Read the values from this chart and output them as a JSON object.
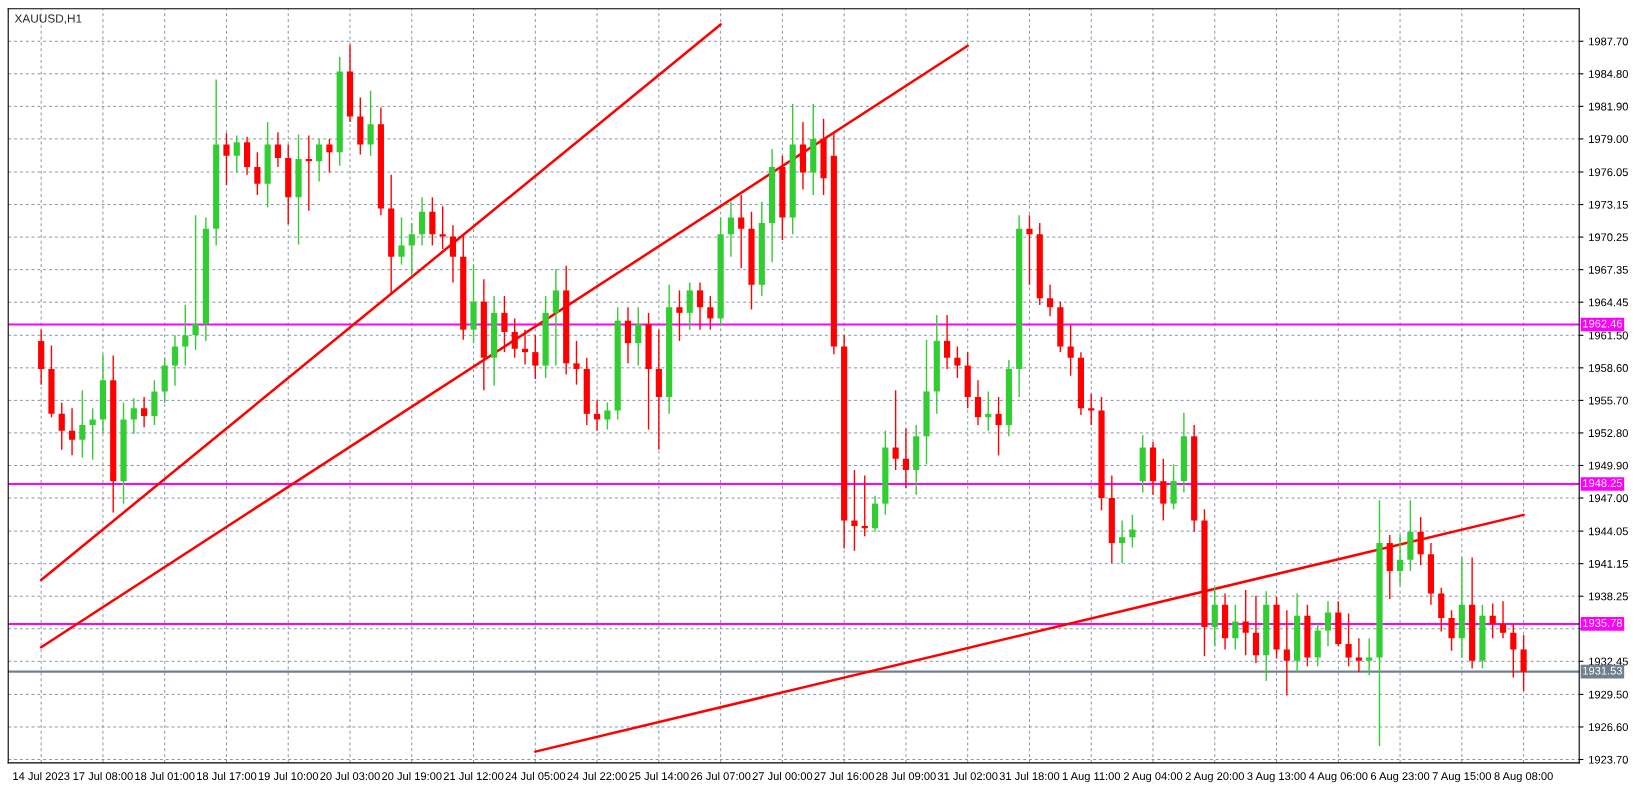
{
  "chart_data": {
    "type": "candlestick",
    "title": "XAUUSD,H1",
    "categories": [
      "14 Jul 2023",
      null,
      null,
      null,
      null,
      null,
      "17 Jul 08:00",
      null,
      null,
      null,
      null,
      null,
      "18 Jul 01:00",
      null,
      null,
      null,
      null,
      null,
      "18 Jul 17:00",
      null,
      null,
      null,
      null,
      null,
      "19 Jul 10:00",
      null,
      null,
      null,
      null,
      null,
      "20 Jul 03:00",
      null,
      null,
      null,
      null,
      null,
      "20 Jul 19:00",
      null,
      null,
      null,
      null,
      null,
      "21 Jul 12:00",
      null,
      null,
      null,
      null,
      null,
      "24 Jul 05:00",
      null,
      null,
      null,
      null,
      null,
      "24 Jul 22:00",
      null,
      null,
      null,
      null,
      null,
      "25 Jul 14:00",
      null,
      null,
      null,
      null,
      null,
      "26 Jul 07:00",
      null,
      null,
      null,
      null,
      null,
      "27 Jul 00:00",
      null,
      null,
      null,
      null,
      null,
      "27 Jul 16:00",
      null,
      null,
      null,
      null,
      null,
      "28 Jul 09:00",
      null,
      null,
      null,
      null,
      null,
      "31 Jul 02:00",
      null,
      null,
      null,
      null,
      null,
      "31 Jul 18:00",
      null,
      null,
      null,
      null,
      null,
      "1 Aug 11:00",
      null,
      null,
      null,
      null,
      null,
      "2 Aug 04:00",
      null,
      null,
      null,
      null,
      null,
      "2 Aug 20:00",
      null,
      null,
      null,
      null,
      null,
      "3 Aug 13:00",
      null,
      null,
      null,
      null,
      null,
      "4 Aug 06:00",
      null,
      null,
      null,
      null,
      null,
      "6 Aug 23:00",
      null,
      null,
      null,
      null,
      null,
      "7 Aug 15:00",
      null,
      null,
      null,
      null,
      null,
      "8 Aug 08:00"
    ],
    "ohlc": [
      [
        1961.0,
        1962.0,
        1957.1,
        1958.5
      ],
      [
        1958.5,
        1960.6,
        1954.2,
        1954.5
      ],
      [
        1954.5,
        1955.5,
        1951.3,
        1953.0
      ],
      [
        1953.0,
        1955.0,
        1950.8,
        1952.2
      ],
      [
        1952.2,
        1956.6,
        1950.6,
        1953.5
      ],
      [
        1953.5,
        1955.0,
        1950.4,
        1954.0
      ],
      [
        1954.0,
        1959.8,
        1952.8,
        1957.5
      ],
      [
        1957.5,
        1959.7,
        1945.7,
        1948.5
      ],
      [
        1948.5,
        1955.5,
        1946.5,
        1954.0
      ],
      [
        1954.0,
        1955.9,
        1952.7,
        1955.0
      ],
      [
        1955.0,
        1956.0,
        1953.3,
        1954.3
      ],
      [
        1954.3,
        1957.5,
        1953.5,
        1956.5
      ],
      [
        1956.5,
        1959.5,
        1955.5,
        1958.8
      ],
      [
        1958.8,
        1961.5,
        1957.0,
        1960.5
      ],
      [
        1960.5,
        1964.2,
        1958.8,
        1961.5
      ],
      [
        1961.5,
        1972.2,
        1960.2,
        1962.5
      ],
      [
        1962.5,
        1972.0,
        1961.0,
        1971.0
      ],
      [
        1971.0,
        1984.3,
        1969.5,
        1978.5
      ],
      [
        1978.5,
        1979.5,
        1974.9,
        1977.5
      ],
      [
        1977.5,
        1979.3,
        1976.0,
        1978.7
      ],
      [
        1978.7,
        1979.2,
        1975.8,
        1976.5
      ],
      [
        1976.5,
        1977.8,
        1974.0,
        1975.0
      ],
      [
        1975.0,
        1980.5,
        1972.9,
        1978.5
      ],
      [
        1978.5,
        1979.6,
        1976.5,
        1977.3
      ],
      [
        1977.3,
        1978.5,
        1971.4,
        1973.8
      ],
      [
        1973.8,
        1979.4,
        1969.6,
        1977.2
      ],
      [
        1977.2,
        1979.3,
        1972.6,
        1977.0
      ],
      [
        1977.0,
        1979.0,
        1975.2,
        1978.5
      ],
      [
        1978.5,
        1979.0,
        1976.0,
        1977.8
      ],
      [
        1977.8,
        1986.3,
        1976.6,
        1985.0
      ],
      [
        1985.0,
        1987.4,
        1980.5,
        1981.0
      ],
      [
        1981.0,
        1982.7,
        1977.6,
        1978.5
      ],
      [
        1978.5,
        1983.3,
        1977.5,
        1980.3
      ],
      [
        1980.3,
        1981.8,
        1972.2,
        1972.8
      ],
      [
        1972.8,
        1975.8,
        1965.1,
        1968.5
      ],
      [
        1968.5,
        1972.0,
        1967.8,
        1969.5
      ],
      [
        1969.5,
        1971.5,
        1966.8,
        1970.5
      ],
      [
        1970.5,
        1973.8,
        1969.5,
        1972.5
      ],
      [
        1972.5,
        1973.8,
        1969.5,
        1970.5
      ],
      [
        1970.5,
        1973.0,
        1969.2,
        1970.3
      ],
      [
        1970.3,
        1971.3,
        1966.2,
        1968.5
      ],
      [
        1968.5,
        1970.5,
        1961.1,
        1962.0
      ],
      [
        1962.0,
        1967.8,
        1960.8,
        1964.5
      ],
      [
        1964.5,
        1966.5,
        1956.6,
        1959.5
      ],
      [
        1959.5,
        1965.0,
        1957.0,
        1963.5
      ],
      [
        1963.5,
        1965.0,
        1960.0,
        1961.8
      ],
      [
        1961.8,
        1963.0,
        1959.5,
        1960.3
      ],
      [
        1960.3,
        1962.0,
        1958.9,
        1960.0
      ],
      [
        1960.0,
        1961.5,
        1957.6,
        1958.8
      ],
      [
        1958.8,
        1965.0,
        1957.7,
        1963.5
      ],
      [
        1963.5,
        1967.4,
        1958.8,
        1965.5
      ],
      [
        1965.5,
        1967.7,
        1958.0,
        1959.0
      ],
      [
        1959.0,
        1961.0,
        1957.1,
        1958.5
      ],
      [
        1958.5,
        1959.5,
        1953.5,
        1954.5
      ],
      [
        1954.5,
        1955.7,
        1953.0,
        1954.0
      ],
      [
        1954.0,
        1955.5,
        1953.1,
        1954.8
      ],
      [
        1954.8,
        1964.0,
        1954.0,
        1962.8
      ],
      [
        1962.8,
        1964.0,
        1959.0,
        1960.8
      ],
      [
        1960.8,
        1964.0,
        1958.8,
        1962.5
      ],
      [
        1962.5,
        1963.5,
        1953.1,
        1958.5
      ],
      [
        1958.5,
        1962.0,
        1951.3,
        1956.0
      ],
      [
        1956.0,
        1966.0,
        1954.5,
        1964.0
      ],
      [
        1964.0,
        1965.5,
        1961.0,
        1963.5
      ],
      [
        1963.5,
        1966.2,
        1962.0,
        1965.5
      ],
      [
        1965.5,
        1966.2,
        1962.0,
        1964.0
      ],
      [
        1964.0,
        1965.0,
        1962.0,
        1963.0
      ],
      [
        1963.0,
        1972.0,
        1962.3,
        1970.5
      ],
      [
        1970.5,
        1973.4,
        1968.5,
        1972.0
      ],
      [
        1972.0,
        1974.0,
        1967.5,
        1971.0
      ],
      [
        1971.0,
        1972.5,
        1963.8,
        1966.0
      ],
      [
        1966.0,
        1973.4,
        1965.0,
        1971.5
      ],
      [
        1971.5,
        1978.1,
        1968.0,
        1976.5
      ],
      [
        1976.5,
        1977.5,
        1970.0,
        1972.0
      ],
      [
        1972.0,
        1982.1,
        1970.5,
        1978.5
      ],
      [
        1978.5,
        1980.5,
        1974.5,
        1976.0
      ],
      [
        1976.0,
        1982.1,
        1974.0,
        1979.0
      ],
      [
        1979.0,
        1980.8,
        1974.0,
        1975.5
      ],
      [
        1977.5,
        1979.5,
        1959.8,
        1960.5
      ],
      [
        1960.5,
        1961.5,
        1942.5,
        1945.0
      ],
      [
        1945.0,
        1949.5,
        1942.3,
        1944.5
      ],
      [
        1944.5,
        1949.0,
        1943.6,
        1944.3
      ],
      [
        1944.3,
        1947.2,
        1944.0,
        1946.5
      ],
      [
        1946.5,
        1953.0,
        1945.5,
        1951.5
      ],
      [
        1951.5,
        1956.6,
        1949.5,
        1950.5
      ],
      [
        1950.5,
        1953.2,
        1947.9,
        1949.5
      ],
      [
        1949.5,
        1953.5,
        1947.3,
        1952.5
      ],
      [
        1952.5,
        1961.1,
        1950.0,
        1956.5
      ],
      [
        1956.5,
        1963.3,
        1954.5,
        1961.0
      ],
      [
        1961.0,
        1963.3,
        1958.5,
        1959.5
      ],
      [
        1959.5,
        1960.5,
        1957.7,
        1958.8
      ],
      [
        1958.8,
        1960.0,
        1955.0,
        1956.0
      ],
      [
        1956.0,
        1957.5,
        1953.5,
        1954.2
      ],
      [
        1954.2,
        1956.5,
        1953.0,
        1954.5
      ],
      [
        1954.5,
        1956.0,
        1950.8,
        1953.5
      ],
      [
        1953.5,
        1959.3,
        1952.5,
        1958.5
      ],
      [
        1958.5,
        1972.2,
        1956.0,
        1971.0
      ],
      [
        1971.0,
        1972.2,
        1966.0,
        1970.5
      ],
      [
        1970.5,
        1971.5,
        1964.2,
        1964.8
      ],
      [
        1964.8,
        1966.0,
        1963.2,
        1964.0
      ],
      [
        1964.0,
        1964.5,
        1960.0,
        1960.5
      ],
      [
        1960.5,
        1962.4,
        1957.9,
        1959.5
      ],
      [
        1959.5,
        1960.0,
        1954.4,
        1955.0
      ],
      [
        1955.0,
        1956.3,
        1953.5,
        1954.8
      ],
      [
        1954.8,
        1956.0,
        1945.9,
        1947.0
      ],
      [
        1947.0,
        1949.0,
        1941.2,
        1943.0
      ],
      [
        1943.0,
        1945.0,
        1941.2,
        1943.5
      ],
      [
        1943.5,
        1945.5,
        1942.6,
        1944.2
      ],
      [
        1948.5,
        1952.6,
        1947.5,
        1951.5
      ],
      [
        1951.5,
        1952.0,
        1947.3,
        1948.5
      ],
      [
        1948.5,
        1950.5,
        1945.0,
        1946.5
      ],
      [
        1946.5,
        1950.0,
        1946.0,
        1948.5
      ],
      [
        1948.5,
        1954.6,
        1947.5,
        1952.5
      ],
      [
        1952.5,
        1953.5,
        1944.0,
        1945.0
      ],
      [
        1945.0,
        1946.0,
        1932.9,
        1935.5
      ],
      [
        1935.5,
        1939.0,
        1933.8,
        1937.5
      ],
      [
        1937.5,
        1938.5,
        1933.5,
        1934.5
      ],
      [
        1934.5,
        1937.5,
        1933.5,
        1936.0
      ],
      [
        1936.0,
        1938.8,
        1933.0,
        1935.0
      ],
      [
        1935.0,
        1938.3,
        1932.3,
        1933.0
      ],
      [
        1933.0,
        1938.7,
        1930.7,
        1937.5
      ],
      [
        1937.5,
        1938.2,
        1932.7,
        1933.5
      ],
      [
        1933.5,
        1937.0,
        1929.4,
        1932.5
      ],
      [
        1932.5,
        1938.5,
        1931.5,
        1936.5
      ],
      [
        1936.5,
        1937.5,
        1932.0,
        1932.8
      ],
      [
        1932.8,
        1935.8,
        1932.0,
        1935.2
      ],
      [
        1935.2,
        1937.8,
        1933.8,
        1936.8
      ],
      [
        1936.8,
        1937.8,
        1933.8,
        1934.0
      ],
      [
        1934.0,
        1936.7,
        1932.0,
        1932.8
      ],
      [
        1932.8,
        1934.5,
        1931.5,
        1932.5
      ],
      [
        1932.5,
        1934.5,
        1931.2,
        1932.8
      ],
      [
        1932.8,
        1946.8,
        1924.9,
        1943.0
      ],
      [
        1943.0,
        1943.7,
        1938.0,
        1940.5
      ],
      [
        1940.5,
        1943.7,
        1939.2,
        1941.5
      ],
      [
        1941.5,
        1946.8,
        1940.5,
        1944.0
      ],
      [
        1944.0,
        1945.3,
        1941.0,
        1942.0
      ],
      [
        1942.0,
        1943.0,
        1937.5,
        1938.5
      ],
      [
        1938.5,
        1939.0,
        1935.1,
        1936.3
      ],
      [
        1936.3,
        1937.0,
        1933.4,
        1934.5
      ],
      [
        1934.5,
        1941.7,
        1932.8,
        1937.5
      ],
      [
        1937.5,
        1941.7,
        1931.8,
        1932.5
      ],
      [
        1932.5,
        1937.5,
        1931.8,
        1936.5
      ],
      [
        1936.5,
        1937.6,
        1934.5,
        1935.8
      ],
      [
        1935.8,
        1937.8,
        1934.5,
        1935.0
      ],
      [
        1935.0,
        1935.8,
        1931.0,
        1933.5
      ],
      [
        1933.5,
        1934.8,
        1929.8,
        1931.53
      ]
    ],
    "colors": [
      "#ff0000",
      "#ff0000",
      "#ff0000",
      "#ff0000",
      "#32cd32",
      "#32cd32",
      "#32cd32",
      "#ff0000",
      "#32cd32",
      "#32cd32",
      "#ff0000",
      "#32cd32",
      "#32cd32",
      "#32cd32",
      "#32cd32",
      "#32cd32",
      "#32cd32",
      "#32cd32",
      "#ff0000",
      "#32cd32",
      "#ff0000",
      "#ff0000",
      "#32cd32",
      "#ff0000",
      "#ff0000",
      "#32cd32",
      "#ff0000",
      "#32cd32",
      "#ff0000",
      "#32cd32",
      "#ff0000",
      "#ff0000",
      "#32cd32",
      "#ff0000",
      "#ff0000",
      "#32cd32",
      "#32cd32",
      "#32cd32",
      "#ff0000",
      "#ff0000",
      "#ff0000",
      "#ff0000",
      "#32cd32",
      "#ff0000",
      "#32cd32",
      "#ff0000",
      "#ff0000",
      "#ff0000",
      "#ff0000",
      "#32cd32",
      "#32cd32",
      "#ff0000",
      "#ff0000",
      "#ff0000",
      "#ff0000",
      "#32cd32",
      "#32cd32",
      "#ff0000",
      "#32cd32",
      "#ff0000",
      "#ff0000",
      "#32cd32",
      "#ff0000",
      "#32cd32",
      "#ff0000",
      "#ff0000",
      "#32cd32",
      "#32cd32",
      "#ff0000",
      "#ff0000",
      "#32cd32",
      "#32cd32",
      "#ff0000",
      "#32cd32",
      "#ff0000",
      "#32cd32",
      "#ff0000",
      "#ff0000",
      "#ff0000",
      "#ff0000",
      "#ff0000",
      "#32cd32",
      "#32cd32",
      "#ff0000",
      "#ff0000",
      "#32cd32",
      "#32cd32",
      "#32cd32",
      "#ff0000",
      "#ff0000",
      "#ff0000",
      "#ff0000",
      "#32cd32",
      "#ff0000",
      "#32cd32",
      "#32cd32",
      "#ff0000",
      "#ff0000",
      "#ff0000",
      "#ff0000",
      "#ff0000",
      "#ff0000",
      "#ff0000",
      "#ff0000",
      "#ff0000",
      "#32cd32",
      "#32cd32",
      "#32cd32",
      "#ff0000",
      "#ff0000",
      "#32cd32",
      "#32cd32",
      "#ff0000",
      "#ff0000",
      "#32cd32",
      "#ff0000",
      "#32cd32",
      "#ff0000",
      "#ff0000",
      "#32cd32",
      "#ff0000",
      "#ff0000",
      "#32cd32",
      "#ff0000",
      "#32cd32",
      "#32cd32",
      "#ff0000",
      "#ff0000",
      "#ff0000",
      "#32cd32",
      "#32cd32",
      "#ff0000",
      "#32cd32",
      "#32cd32",
      "#ff0000",
      "#ff0000",
      "#ff0000",
      "#ff0000",
      "#32cd32",
      "#ff0000",
      "#32cd32",
      "#ff0000",
      "#ff0000",
      "#ff0000",
      "#ff0000"
    ],
    "series": [
      {
        "type": "line",
        "color": "#ff0000",
        "values": [
          1939.7,
          null,
          null,
          null,
          null,
          null,
          null,
          null,
          null,
          null,
          null,
          null,
          null,
          null,
          null,
          null,
          null,
          null,
          null,
          null,
          null,
          null,
          null,
          null,
          null,
          null,
          null,
          null,
          null,
          null,
          null,
          null,
          null,
          null,
          null,
          null,
          null,
          null,
          null,
          null,
          null,
          null,
          null,
          null,
          null,
          null,
          null,
          null,
          null,
          null,
          null,
          null,
          null,
          null,
          null,
          null,
          null,
          null,
          null,
          null,
          null,
          null,
          null,
          null,
          null,
          null,
          1989.2,
          null,
          null,
          null,
          null,
          null,
          null,
          null,
          null,
          null,
          null,
          null,
          null,
          null,
          null,
          null,
          null,
          null,
          null,
          null,
          null,
          null,
          null,
          null,
          null,
          null,
          null,
          null,
          null,
          null,
          null,
          null,
          null,
          null,
          null,
          null,
          null,
          null,
          null,
          null,
          null,
          null,
          null,
          null,
          null,
          null,
          null,
          null,
          null,
          null,
          null,
          null,
          null,
          null,
          null,
          null,
          null,
          null,
          null,
          null,
          null,
          null,
          null,
          null,
          null,
          null,
          null,
          null,
          null,
          null,
          null,
          null,
          null,
          null,
          null,
          null,
          null,
          null,
          null
        ]
      },
      {
        "type": "line",
        "color": "#ff0000",
        "values": [
          1933.7,
          null,
          null,
          null,
          null,
          null,
          null,
          null,
          null,
          null,
          null,
          null,
          null,
          null,
          null,
          null,
          null,
          null,
          null,
          null,
          null,
          null,
          null,
          null,
          null,
          null,
          null,
          null,
          null,
          null,
          null,
          null,
          null,
          null,
          null,
          null,
          null,
          null,
          null,
          null,
          null,
          null,
          null,
          null,
          null,
          null,
          null,
          null,
          null,
          null,
          null,
          null,
          null,
          null,
          null,
          null,
          null,
          null,
          null,
          null,
          null,
          null,
          null,
          null,
          null,
          null,
          null,
          null,
          null,
          null,
          null,
          null,
          null,
          null,
          null,
          null,
          null,
          null,
          null,
          null,
          null,
          null,
          null,
          null,
          null,
          null,
          null,
          null,
          null,
          null,
          1987.3,
          null,
          null,
          null,
          null,
          null,
          null,
          null,
          null,
          null,
          null,
          null,
          null,
          null,
          null,
          null,
          null,
          null,
          null,
          null,
          null,
          null,
          null,
          null,
          null,
          null,
          null,
          null,
          null,
          null,
          null,
          null,
          null,
          null,
          null,
          null,
          null,
          null,
          null,
          null,
          null,
          null,
          null,
          null,
          null,
          null,
          null,
          null,
          null,
          null,
          null,
          null,
          null,
          null,
          null
        ]
      },
      {
        "type": "line",
        "color": "#ff0000",
        "values": [
          null,
          null,
          null,
          null,
          null,
          null,
          null,
          null,
          null,
          null,
          null,
          null,
          null,
          null,
          null,
          null,
          null,
          null,
          null,
          null,
          null,
          null,
          null,
          null,
          null,
          null,
          null,
          null,
          null,
          null,
          null,
          null,
          null,
          null,
          null,
          null,
          null,
          null,
          null,
          null,
          null,
          null,
          null,
          null,
          null,
          null,
          null,
          null,
          1924.4,
          null,
          null,
          null,
          null,
          null,
          null,
          null,
          null,
          null,
          null,
          null,
          null,
          null,
          null,
          null,
          null,
          null,
          null,
          null,
          null,
          null,
          null,
          null,
          null,
          null,
          null,
          null,
          null,
          null,
          null,
          null,
          null,
          null,
          null,
          null,
          null,
          null,
          null,
          null,
          null,
          null,
          null,
          null,
          null,
          null,
          null,
          null,
          null,
          null,
          null,
          null,
          null,
          null,
          null,
          null,
          null,
          null,
          null,
          null,
          null,
          null,
          null,
          null,
          null,
          null,
          null,
          null,
          null,
          null,
          null,
          null,
          null,
          null,
          null,
          null,
          null,
          null,
          null,
          null,
          null,
          null,
          null,
          null,
          null,
          null,
          null,
          null,
          null,
          null,
          null,
          null,
          null,
          null,
          null,
          null,
          1945.5
        ]
      }
    ],
    "ref_lines": [
      {
        "axis": "y",
        "value": 1962.46,
        "label": "1962.46",
        "color": "#ff00ff"
      },
      {
        "axis": "y",
        "value": 1948.25,
        "label": "1948.25",
        "color": "#ff00ff"
      },
      {
        "axis": "y",
        "value": 1935.78,
        "label": "1935.78",
        "color": "#ff00ff"
      },
      {
        "axis": "y",
        "value": 1931.53,
        "label": "1931.53",
        "color": "#708090"
      }
    ],
    "ylim": [
      1923.4,
      1990.6
    ],
    "yticks": [
      {
        "value": 1923.7,
        "label": "1923.70"
      },
      {
        "value": 1926.6,
        "label": "1926.60"
      },
      {
        "value": 1929.5,
        "label": "1929.50"
      },
      {
        "value": 1932.45,
        "label": "1932.45"
      },
      {
        "value": 1935.35,
        "label": null
      },
      {
        "value": 1938.25,
        "label": "1938.25"
      },
      {
        "value": 1941.15,
        "label": "1941.15"
      },
      {
        "value": 1944.05,
        "label": "1944.05"
      },
      {
        "value": 1947.0,
        "label": "1947.00"
      },
      {
        "value": 1949.9,
        "label": "1949.90"
      },
      {
        "value": 1952.8,
        "label": "1952.80"
      },
      {
        "value": 1955.7,
        "label": "1955.70"
      },
      {
        "value": 1958.6,
        "label": "1958.60"
      },
      {
        "value": 1961.5,
        "label": "1961.50"
      },
      {
        "value": 1964.45,
        "label": "1964.45"
      },
      {
        "value": 1967.35,
        "label": "1967.35"
      },
      {
        "value": 1970.25,
        "label": "1970.25"
      },
      {
        "value": 1973.15,
        "label": "1973.15"
      },
      {
        "value": 1976.05,
        "label": "1976.05"
      },
      {
        "value": 1979.0,
        "label": "1979.00"
      },
      {
        "value": 1981.9,
        "label": "1981.90"
      },
      {
        "value": 1984.8,
        "label": "1984.80"
      },
      {
        "value": 1987.7,
        "label": "1987.70"
      }
    ],
    "grid": true
  }
}
